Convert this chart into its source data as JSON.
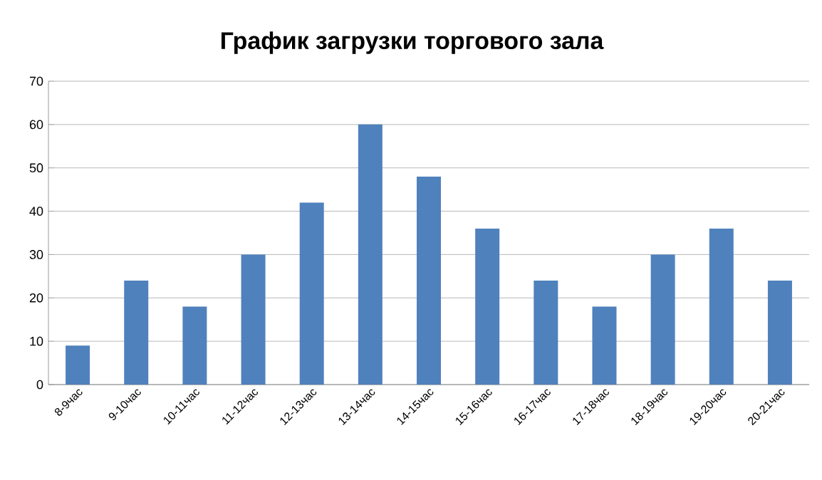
{
  "chart_data": {
    "type": "bar",
    "title": "График загрузки торгового зала",
    "categories": [
      "8-9час",
      "9-10час",
      "10-11час",
      "11-12час",
      "12-13час",
      "13-14час",
      "14-15час",
      "15-16час",
      "16-17час",
      "17-18час",
      "18-19час",
      "19-20час",
      "20-21час"
    ],
    "values": [
      9,
      24,
      18,
      30,
      42,
      60,
      48,
      36,
      24,
      18,
      30,
      36,
      24
    ],
    "color": "#4f81bd",
    "ylim": [
      0,
      70
    ],
    "yticks": [
      0,
      10,
      20,
      30,
      40,
      50,
      60,
      70
    ],
    "grid": "y"
  }
}
